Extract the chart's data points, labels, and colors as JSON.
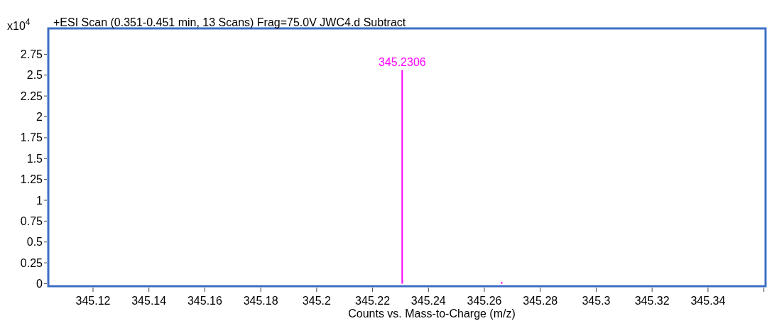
{
  "chart_data": {
    "type": "bar",
    "title": "+ESI Scan (0.351-0.451 min, 13 Scans) Frag=75.0V JWC4.d  Subtract",
    "xlabel": "Counts vs. Mass-to-Charge (m/z)",
    "ylabel": "x10$^{4}$",
    "x": [
      345.2306,
      345.2662
    ],
    "series": [
      {
        "color": "#ff00ff",
        "values": [
          2.56,
          0.02
        ]
      }
    ],
    "annotations": [
      {
        "text": "345.2306",
        "x": 345.2306,
        "y": 2.56
      }
    ],
    "xlim": [
      345.104,
      345.3606
    ],
    "ylim": [
      -0.03,
      3.06
    ],
    "xticks": [
      345.12,
      345.14,
      345.16,
      345.18,
      345.2,
      345.22,
      345.24,
      345.26,
      345.28,
      345.3,
      345.32,
      345.34,
      {
        "value": 345.36,
        "label": null
      }
    ],
    "yticks": [
      0,
      0.25,
      0.5,
      0.75,
      1,
      1.25,
      1.5,
      1.75,
      2,
      2.25,
      2.5,
      2.75
    ],
    "grid": false
  }
}
